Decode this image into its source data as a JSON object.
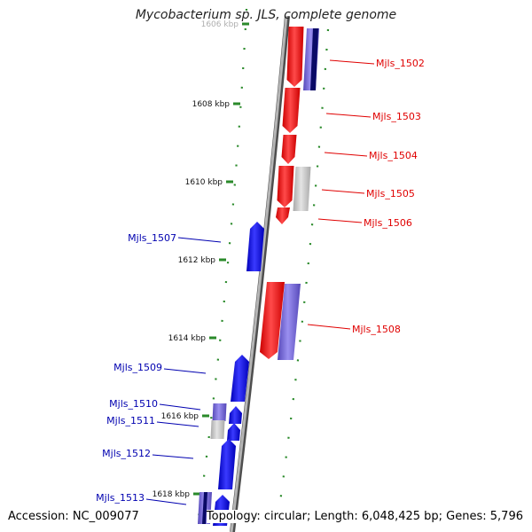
{
  "title": "Mycobacterium sp. JLS, complete genome",
  "accession_text": "Accession: NC_009077",
  "stats_text": "Topology: circular; Length: 6,048,425 bp; Genes: 5,796",
  "colors": {
    "forward": "#ff0000",
    "reverse": "#0000ff",
    "grey": "#c8c8c8",
    "purple": "#7d6fd6",
    "tick": "#2a8a2a",
    "backbone": "#888888"
  },
  "tick_labels": [
    "1606 kbp",
    "1608 kbp",
    "1610 kbp",
    "1612 kbp",
    "1614 kbp",
    "1616 kbp",
    "1618 kbp"
  ],
  "genes": [
    {
      "label": "Mjls_1502",
      "strand": "forward"
    },
    {
      "label": "Mjls_1503",
      "strand": "forward"
    },
    {
      "label": "Mjls_1504",
      "strand": "forward"
    },
    {
      "label": "Mjls_1505",
      "strand": "forward"
    },
    {
      "label": "Mjls_1506",
      "strand": "forward"
    },
    {
      "label": "Mjls_1507",
      "strand": "reverse"
    },
    {
      "label": "Mjls_1508",
      "strand": "forward"
    },
    {
      "label": "Mjls_1509",
      "strand": "reverse"
    },
    {
      "label": "Mjls_1510",
      "strand": "reverse"
    },
    {
      "label": "Mjls_1511",
      "strand": "reverse"
    },
    {
      "label": "Mjls_1512",
      "strand": "reverse"
    },
    {
      "label": "Mjls_1513",
      "strand": "reverse"
    }
  ]
}
